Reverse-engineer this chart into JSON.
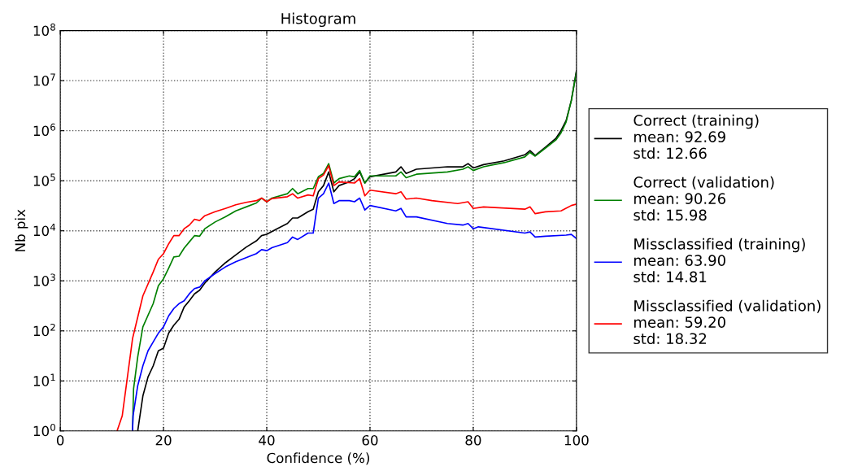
{
  "chart_data": {
    "type": "line",
    "title": "Histogram",
    "xlabel": "Confidence (%)",
    "ylabel": "Nb pix",
    "log": "y",
    "xlim": [
      0,
      100
    ],
    "xticks": [
      0,
      20,
      40,
      60,
      80,
      100
    ],
    "ylim": [
      1,
      100000000
    ],
    "yticks": [
      {
        "value": 1,
        "label": "10$^{0}$"
      },
      {
        "value": 10,
        "label": "10$^{1}$"
      },
      {
        "value": 100,
        "label": "10$^{2}$"
      },
      {
        "value": 1000,
        "label": "10$^{3}$"
      },
      {
        "value": 10000,
        "label": "10$^{4}$"
      },
      {
        "value": 100000,
        "label": "10$^{5}$"
      },
      {
        "value": 1000000,
        "label": "10$^{6}$"
      },
      {
        "value": 10000000,
        "label": "10$^{7}$"
      },
      {
        "value": 100000000,
        "label": "10$^{8}$"
      }
    ],
    "grid": true,
    "legend": "right",
    "marker": "none",
    "line_style": "solid",
    "series": [
      {
        "name": "Correct (training)\nmean: 92.69\nstd: 12.66",
        "color": "#000000",
        "x": [
          15,
          16,
          17,
          18,
          19,
          20,
          21,
          22,
          23,
          24,
          25,
          26,
          27,
          28,
          30,
          32,
          34,
          36,
          38,
          39,
          40,
          42,
          44,
          45,
          46,
          48,
          49,
          50,
          51,
          52,
          53,
          54,
          56,
          57,
          58,
          59,
          60,
          65,
          66,
          67,
          69,
          75,
          78,
          79,
          80,
          82,
          86,
          90,
          91,
          92,
          94,
          96,
          97,
          98,
          99,
          100
        ],
        "values": [
          1,
          5,
          12,
          20,
          40,
          45,
          90,
          130,
          170,
          300,
          400,
          550,
          650,
          900,
          1500,
          2300,
          3300,
          4700,
          6300,
          8000,
          8500,
          11000,
          14000,
          18000,
          18000,
          24000,
          27000,
          60000,
          80000,
          150000,
          60000,
          80000,
          95000,
          110000,
          150000,
          90000,
          120000,
          150000,
          190000,
          140000,
          170000,
          190000,
          190000,
          220000,
          180000,
          210000,
          250000,
          330000,
          400000,
          320000,
          470000,
          700000,
          1000000,
          1600000,
          4000000,
          16000000
        ]
      },
      {
        "name": "Correct (validation)\nmean: 90.26\nstd: 15.98",
        "color": "#008000",
        "x": [
          14,
          14.2,
          15,
          16,
          18,
          19,
          20,
          21,
          22,
          23,
          24,
          25,
          26,
          27,
          28,
          30,
          32,
          34,
          36,
          38,
          39,
          40,
          41,
          44,
          45,
          46,
          48,
          49,
          50,
          51,
          52,
          53,
          54,
          56,
          57,
          58,
          59,
          60,
          65,
          66,
          67,
          69,
          75,
          78,
          79,
          80,
          82,
          86,
          90,
          91,
          92,
          94,
          96,
          97,
          98,
          99,
          100
        ],
        "values": [
          1,
          7,
          30,
          120,
          350,
          800,
          1100,
          1800,
          3000,
          3100,
          4500,
          6000,
          8000,
          7800,
          11000,
          15000,
          19000,
          25000,
          30000,
          36000,
          45000,
          38000,
          45000,
          55000,
          70000,
          55000,
          70000,
          70000,
          120000,
          140000,
          220000,
          90000,
          110000,
          125000,
          120000,
          160000,
          90000,
          125000,
          125000,
          150000,
          115000,
          135000,
          150000,
          170000,
          190000,
          160000,
          190000,
          230000,
          300000,
          370000,
          310000,
          450000,
          650000,
          900000,
          1500000,
          4000000,
          15000000
        ]
      },
      {
        "name": "Missclassified (training)\nmean: 63.90\nstd: 14.81",
        "color": "#0000ff",
        "x": [
          14,
          14.1,
          15,
          16,
          17,
          18,
          19,
          20,
          21,
          22,
          23,
          24,
          25,
          26,
          27,
          28,
          30,
          32,
          34,
          36,
          38,
          39,
          40,
          41,
          44,
          45,
          46,
          48,
          49,
          50,
          51,
          52,
          53,
          54,
          56,
          57,
          58,
          59,
          60,
          65,
          66,
          67,
          69,
          75,
          78,
          79,
          80,
          81,
          90,
          91,
          92,
          94,
          98,
          99,
          100
        ],
        "values": [
          1,
          2,
          8,
          20,
          40,
          60,
          90,
          120,
          200,
          280,
          350,
          400,
          550,
          700,
          750,
          1000,
          1400,
          1900,
          2400,
          2900,
          3500,
          4200,
          4000,
          4600,
          5800,
          7500,
          6700,
          9000,
          9000,
          45000,
          55000,
          90000,
          35000,
          40000,
          40000,
          38000,
          45000,
          26000,
          32000,
          25000,
          28000,
          19000,
          19000,
          14000,
          13000,
          14000,
          11000,
          12000,
          9000,
          9500,
          7500,
          7800,
          8200,
          8500,
          7000
        ]
      },
      {
        "name": "Missclassified (validation)\nmean: 59.20\nstd: 18.32",
        "color": "#ff0000",
        "x": [
          11,
          12,
          14,
          16,
          18,
          19,
          20,
          21,
          22,
          23,
          24,
          25,
          26,
          27,
          28,
          30,
          32,
          34,
          36,
          38,
          39,
          40,
          41,
          44,
          45,
          46,
          48,
          49,
          50,
          51,
          52,
          53,
          54,
          57,
          58,
          59,
          60,
          65,
          66,
          67,
          69,
          72,
          77,
          79,
          80,
          82,
          90,
          91,
          92,
          94,
          97,
          99,
          100
        ],
        "values": [
          1,
          2,
          70,
          500,
          1500,
          2700,
          3500,
          5500,
          8000,
          8000,
          11000,
          13000,
          17000,
          16000,
          20000,
          24000,
          28000,
          33000,
          37000,
          40000,
          45000,
          38000,
          44000,
          48000,
          55000,
          45000,
          52000,
          50000,
          110000,
          130000,
          200000,
          80000,
          95000,
          90000,
          110000,
          50000,
          65000,
          55000,
          60000,
          43000,
          45000,
          40000,
          35000,
          38000,
          28000,
          30000,
          27000,
          30000,
          22000,
          24000,
          25000,
          32000,
          34000
        ]
      }
    ]
  }
}
